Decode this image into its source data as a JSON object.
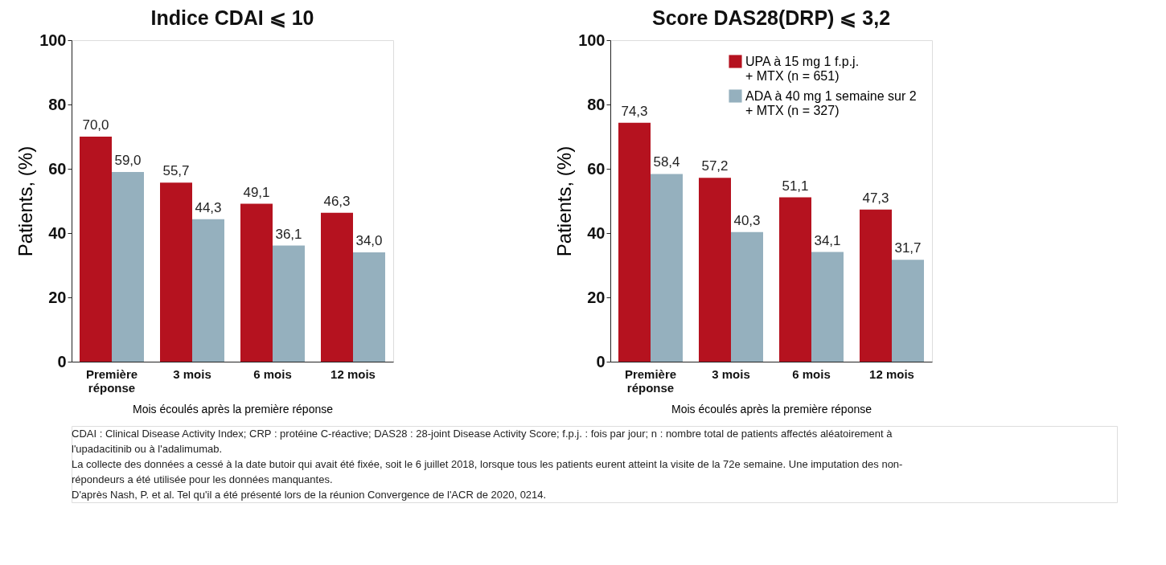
{
  "chart_data": [
    {
      "type": "bar",
      "title": "Indice CDAI ⩽ 10",
      "xlabel": "Mois écoulés après la première réponse",
      "ylabel": "Patients, (%)",
      "categories": [
        "Première\nréponse",
        "3 mois",
        "6 mois",
        "12 mois"
      ],
      "series": [
        {
          "color": "#b5121f",
          "values": [
            70.0,
            55.7,
            49.1,
            46.3
          ],
          "value_labels": [
            "70,0",
            "55,7",
            "49,1",
            "46,3"
          ]
        },
        {
          "color": "#95b0be",
          "values": [
            59.0,
            44.3,
            36.1,
            34.0
          ],
          "value_labels": [
            "59,0",
            "44,3",
            "36,1",
            "34,0"
          ]
        }
      ],
      "ylim": [
        0,
        100
      ],
      "yticks": [
        0,
        20,
        40,
        60,
        80,
        100
      ],
      "grid": false,
      "legend": false,
      "annotations": [
        "CDAI : Clinical Disease Activity Index; CRP : protéine C-réactive; DAS28 : 28-joint Disease Activity Score; f.p.j. : fois par jour; n : nombre total de patients affectés aléatoirement à",
        "l'upadacitinib ou à l'adalimumab.",
        "La collecte des données a cessé à la date butoir qui avait été fixée, soit le 6 juillet 2018, lorsque tous les patients eurent atteint la visite de la 72e semaine. Une imputation des non-",
        "répondeurs a été utilisée pour les données manquantes.",
        "D'après Nash, P. et al. Tel qu'il a été présenté lors de la réunion Convergence de l'ACR de 2020, 0214."
      ]
    },
    {
      "type": "bar",
      "title": "Score DAS28(DRP) ⩽ 3,2",
      "xlabel": "Mois écoulés après la première réponse",
      "ylabel": "Patients, (%)",
      "categories": [
        "Première\nréponse",
        "3 mois",
        "6 mois",
        "12 mois"
      ],
      "series": [
        {
          "name": "UPA à 15 mg 1 f.p.j.\n+ MTX (n = 651)",
          "color": "#b5121f",
          "values": [
            74.3,
            57.2,
            51.1,
            47.3
          ],
          "value_labels": [
            "74,3",
            "57,2",
            "51,1",
            "47,3"
          ]
        },
        {
          "name": "ADA à 40 mg 1 semaine sur 2\n+ MTX (n = 327)",
          "color": "#95b0be",
          "values": [
            58.4,
            40.3,
            34.1,
            31.7
          ],
          "value_labels": [
            "58,4",
            "40,3",
            "34,1",
            "31,7"
          ]
        }
      ],
      "ylim": [
        0,
        100
      ],
      "yticks": [
        0,
        20,
        40,
        60,
        80,
        100
      ],
      "grid": false,
      "legend": "top right"
    }
  ]
}
